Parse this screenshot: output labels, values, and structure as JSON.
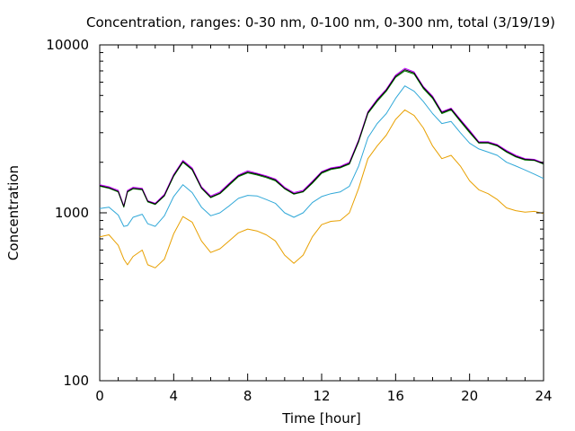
{
  "chart_data": {
    "type": "line",
    "title": "Concentration, ranges: 0-30 nm, 0-100 nm, 0-300 nm, total (3/19/19)",
    "xlabel": "Time [hour]",
    "ylabel": "Concentration",
    "xlim": [
      0,
      24
    ],
    "ylim": [
      100,
      10000
    ],
    "yscale": "log",
    "grid": false,
    "legend": "none",
    "x_ticks": [
      "0",
      "4",
      "8",
      "12",
      "16",
      "20",
      "24"
    ],
    "y_ticks": [
      "100",
      "1000",
      "10000"
    ],
    "x": [
      0,
      0.5,
      1,
      1.3,
      1.5,
      1.8,
      2.3,
      2.6,
      3,
      3.5,
      4,
      4.5,
      5,
      5.5,
      6,
      6.5,
      7,
      7.5,
      8,
      8.5,
      9,
      9.5,
      10,
      10.5,
      11,
      11.5,
      12,
      12.5,
      13,
      13.5,
      14,
      14.5,
      15,
      15.5,
      16,
      16.5,
      17,
      17.5,
      18,
      18.5,
      19,
      19.5,
      20,
      20.5,
      21,
      21.5,
      22,
      22.5,
      23,
      23.5,
      24
    ],
    "series": [
      {
        "color": "#e8a000",
        "values": [
          720,
          740,
          640,
          530,
          490,
          550,
          600,
          490,
          470,
          530,
          750,
          950,
          880,
          680,
          580,
          610,
          680,
          760,
          800,
          780,
          740,
          680,
          560,
          500,
          560,
          720,
          850,
          890,
          900,
          1000,
          1400,
          2100,
          2500,
          2900,
          3600,
          4100,
          3800,
          3200,
          2500,
          2100,
          2200,
          1900,
          1550,
          1370,
          1300,
          1200,
          1070,
          1030,
          1010,
          1020,
          990
        ]
      },
      {
        "color": "#30a8d8",
        "values": [
          1060,
          1080,
          970,
          830,
          840,
          940,
          980,
          860,
          830,
          960,
          1250,
          1470,
          1320,
          1080,
          960,
          1000,
          1100,
          1220,
          1270,
          1260,
          1200,
          1140,
          1000,
          940,
          1000,
          1150,
          1250,
          1300,
          1330,
          1440,
          1900,
          2800,
          3400,
          3900,
          4800,
          5700,
          5300,
          4600,
          3900,
          3400,
          3500,
          3000,
          2600,
          2400,
          2300,
          2200,
          2000,
          1900,
          1800,
          1700,
          1600
        ]
      },
      {
        "color": "#008000",
        "values": [
          1440,
          1400,
          1330,
          1080,
          1330,
          1390,
          1370,
          1160,
          1120,
          1260,
          1650,
          2000,
          1800,
          1400,
          1230,
          1300,
          1460,
          1640,
          1730,
          1680,
          1620,
          1550,
          1390,
          1290,
          1330,
          1500,
          1720,
          1810,
          1850,
          1950,
          2650,
          3900,
          4600,
          5300,
          6400,
          7000,
          6700,
          5500,
          4800,
          3900,
          4100,
          3500,
          3000,
          2600,
          2600,
          2500,
          2300,
          2150,
          2060,
          2050,
          1950
        ]
      },
      {
        "color": "#c000ff",
        "values": [
          1470,
          1430,
          1360,
          1100,
          1360,
          1420,
          1400,
          1180,
          1140,
          1290,
          1690,
          2050,
          1850,
          1430,
          1260,
          1330,
          1500,
          1680,
          1780,
          1720,
          1660,
          1590,
          1420,
          1320,
          1360,
          1540,
          1760,
          1850,
          1890,
          2000,
          2720,
          4000,
          4750,
          5450,
          6600,
          7250,
          6900,
          5650,
          4950,
          4000,
          4200,
          3600,
          3100,
          2650,
          2650,
          2550,
          2350,
          2200,
          2100,
          2080,
          1980
        ]
      },
      {
        "color": "#000000",
        "values": [
          1450,
          1410,
          1340,
          1090,
          1340,
          1400,
          1380,
          1170,
          1130,
          1270,
          1670,
          2020,
          1820,
          1410,
          1240,
          1310,
          1480,
          1660,
          1750,
          1700,
          1640,
          1570,
          1400,
          1300,
          1340,
          1520,
          1740,
          1830,
          1870,
          1970,
          2680,
          3950,
          4680,
          5380,
          6500,
          7120,
          6800,
          5580,
          4880,
          3950,
          4150,
          3550,
          3050,
          2620,
          2620,
          2520,
          2320,
          2170,
          2080,
          2060,
          1960
        ]
      }
    ]
  }
}
